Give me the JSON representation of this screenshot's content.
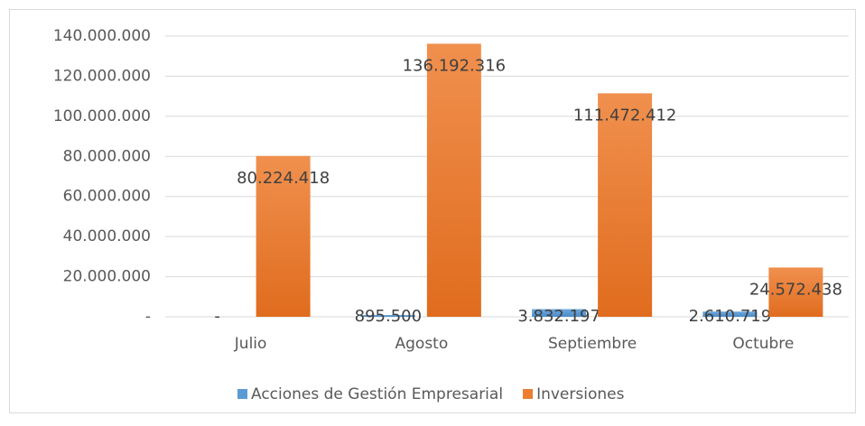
{
  "chart_data": {
    "type": "bar",
    "categories": [
      "Julio",
      "Agosto",
      "Septiembre",
      "Octubre"
    ],
    "series": [
      {
        "name": "Acciones de Gestión Empresarial",
        "color": "#5b9bd5",
        "values": [
          0,
          895500,
          3832197,
          2610719
        ],
        "value_labels": [
          "-",
          "895.500",
          "3.832.197",
          "2.610.719"
        ]
      },
      {
        "name": "Inversiones",
        "color": "#ed7d31",
        "values": [
          80224418,
          136192316,
          111472412,
          24572438
        ],
        "value_labels": [
          "80.224.418",
          "136.192.316",
          "111.472.412",
          "24.572.438"
        ]
      }
    ],
    "ylim": [
      0,
      140000000
    ],
    "yticks": [
      {
        "value": 0,
        "label": "-"
      },
      {
        "value": 20000000,
        "label": "20.000.000"
      },
      {
        "value": 40000000,
        "label": "40.000.000"
      },
      {
        "value": 60000000,
        "label": "60.000.000"
      },
      {
        "value": 80000000,
        "label": "80.000.000"
      },
      {
        "value": 100000000,
        "label": "100.000.000"
      },
      {
        "value": 120000000,
        "label": "120.000.000"
      },
      {
        "value": 140000000,
        "label": "140.000.000"
      }
    ],
    "grid": true,
    "legend": "bottom"
  }
}
